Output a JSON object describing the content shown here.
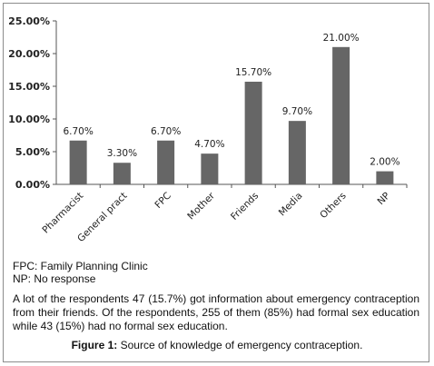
{
  "chart_data": {
    "type": "bar",
    "categories": [
      "Pharmacist",
      "General pract",
      "FPC",
      "Mother",
      "Friends",
      "Media",
      "Others",
      "NP"
    ],
    "values": [
      6.7,
      3.3,
      6.7,
      4.7,
      15.7,
      9.7,
      21.0,
      2.0
    ],
    "data_labels": [
      "6.70%",
      "3.30%",
      "6.70%",
      "4.70%",
      "15.70%",
      "9.70%",
      "21.00%",
      "2.00%"
    ],
    "y_ticks": [
      0,
      5,
      10,
      15,
      20,
      25
    ],
    "y_tick_labels": [
      "0.00%",
      "5.00%",
      "10.00%",
      "15.00%",
      "20.00%",
      "25.00%"
    ],
    "ylim": [
      0,
      25
    ],
    "grid": false,
    "bar_color": "#666666",
    "title": "",
    "xlabel": "",
    "ylabel": ""
  },
  "legend": {
    "line1": "FPC: Family Planning Clinic",
    "line2": "NP: No response"
  },
  "description": "A lot of the respondents 47 (15.7%) got information about emergency contraception from their friends. Of the respondents, 255 of them (85%) had formal sex education while 43 (15%) had no formal sex education.",
  "caption": {
    "label": "Figure 1:",
    "text": "Source of knowledge of emergency contraception."
  }
}
